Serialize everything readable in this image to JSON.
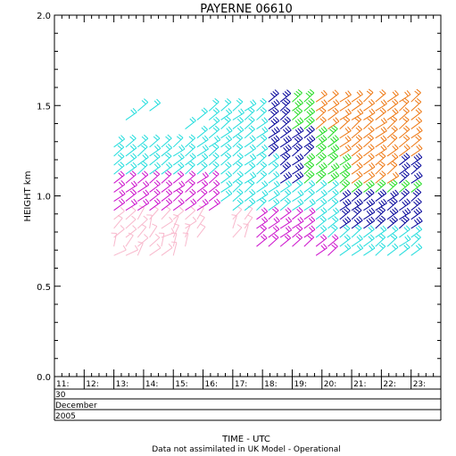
{
  "chart_data": {
    "type": "scatter",
    "subtype": "wind-barb profile",
    "title": "PAYERNE 06610",
    "xlabel": "TIME - UTC",
    "ylabel": "HEIGHT km",
    "note": "Data not assimilated in UK Model - Operational",
    "ylim": [
      0.0,
      2.0
    ],
    "yticks": [
      "0.0",
      "0.5",
      "1.0",
      "1.5",
      "2.0"
    ],
    "xlim": [
      11.0,
      24.0
    ],
    "xtick_labels": [
      "11:",
      "12:",
      "13:",
      "14:",
      "15:",
      "16:",
      "17:",
      "18:",
      "19:",
      "20:",
      "21:",
      "22:",
      "23:"
    ],
    "date_rows": [
      "30",
      "December",
      "2005"
    ],
    "grid": false,
    "speed_colors": {
      "pink": "#f8b8cc",
      "magenta": "#cc11cc",
      "cyan": "#22dddd",
      "navy": "#000099",
      "green": "#22dd22",
      "orange": "#ee7711"
    },
    "barb_columns": [
      {
        "time": 13.0,
        "heights": [
          0.67,
          0.72,
          0.77,
          0.82,
          0.87,
          0.92,
          0.97,
          1.02,
          1.07,
          1.12,
          1.17,
          1.22,
          1.27
        ]
      },
      {
        "time": 13.4,
        "heights": [
          0.67,
          0.72,
          0.77,
          0.82,
          0.87,
          0.92,
          0.97,
          1.02,
          1.07,
          1.12,
          1.17,
          1.22,
          1.27,
          1.42
        ]
      },
      {
        "time": 13.8,
        "heights": [
          0.67,
          0.72,
          0.77,
          0.82,
          0.87,
          0.92,
          0.97,
          1.02,
          1.07,
          1.12,
          1.17,
          1.22,
          1.27,
          1.47
        ]
      },
      {
        "time": 14.2,
        "heights": [
          0.67,
          0.72,
          0.77,
          0.82,
          0.87,
          0.92,
          0.97,
          1.02,
          1.07,
          1.12,
          1.17,
          1.22,
          1.27,
          1.47
        ]
      },
      {
        "time": 14.6,
        "heights": [
          0.67,
          0.72,
          0.77,
          0.82,
          0.87,
          0.92,
          0.97,
          1.02,
          1.07,
          1.12,
          1.17,
          1.22,
          1.27
        ]
      },
      {
        "time": 15.0,
        "heights": [
          0.67,
          0.72,
          0.77,
          0.82,
          0.87,
          0.92,
          0.97,
          1.02,
          1.07,
          1.12,
          1.17,
          1.22,
          1.27
        ]
      },
      {
        "time": 15.4,
        "heights": [
          0.72,
          0.77,
          0.82,
          0.87,
          0.92,
          0.97,
          1.02,
          1.07,
          1.12,
          1.17,
          1.22,
          1.27,
          1.37
        ]
      },
      {
        "time": 15.8,
        "heights": [
          0.77,
          0.82,
          0.87,
          0.92,
          0.97,
          1.02,
          1.07,
          1.12,
          1.17,
          1.22,
          1.27,
          1.32,
          1.42
        ]
      },
      {
        "time": 16.2,
        "heights": [
          0.92,
          0.97,
          1.02,
          1.07,
          1.12,
          1.17,
          1.22,
          1.27,
          1.32,
          1.37,
          1.42,
          1.47
        ]
      },
      {
        "time": 16.6,
        "heights": [
          0.97,
          1.02,
          1.07,
          1.12,
          1.17,
          1.22,
          1.27,
          1.32,
          1.37,
          1.42,
          1.47
        ]
      },
      {
        "time": 17.0,
        "heights": [
          0.77,
          0.82,
          0.87,
          0.92,
          0.97,
          1.02,
          1.07,
          1.12,
          1.17,
          1.22,
          1.27,
          1.32,
          1.37,
          1.42,
          1.47
        ]
      },
      {
        "time": 17.4,
        "heights": [
          0.77,
          0.82,
          0.87,
          0.92,
          0.97,
          1.02,
          1.07,
          1.12,
          1.17,
          1.22,
          1.27,
          1.32,
          1.37,
          1.42,
          1.47
        ]
      },
      {
        "time": 17.8,
        "heights": [
          0.72,
          0.77,
          0.82,
          0.87,
          0.92,
          0.97,
          1.02,
          1.07,
          1.12,
          1.17,
          1.22,
          1.27,
          1.32,
          1.37,
          1.42,
          1.47
        ]
      },
      {
        "time": 18.2,
        "heights": [
          0.72,
          0.77,
          0.82,
          0.87,
          0.92,
          0.97,
          1.02,
          1.07,
          1.12,
          1.17,
          1.22,
          1.27,
          1.32,
          1.37,
          1.42,
          1.47,
          1.52
        ]
      },
      {
        "time": 18.6,
        "heights": [
          0.72,
          0.77,
          0.82,
          0.87,
          0.92,
          0.97,
          1.02,
          1.07,
          1.12,
          1.17,
          1.22,
          1.27,
          1.32,
          1.37,
          1.42,
          1.47,
          1.52
        ]
      },
      {
        "time": 19.0,
        "heights": [
          0.72,
          0.77,
          0.82,
          0.87,
          0.92,
          0.97,
          1.02,
          1.07,
          1.12,
          1.17,
          1.22,
          1.27,
          1.32,
          1.37,
          1.42,
          1.47,
          1.52
        ]
      },
      {
        "time": 19.4,
        "heights": [
          0.72,
          0.77,
          0.82,
          0.87,
          0.92,
          0.97,
          1.02,
          1.07,
          1.12,
          1.17,
          1.22,
          1.27,
          1.32,
          1.37,
          1.42,
          1.47,
          1.52
        ]
      },
      {
        "time": 19.8,
        "heights": [
          0.67,
          0.72,
          0.77,
          0.82,
          0.87,
          0.92,
          0.97,
          1.02,
          1.07,
          1.12,
          1.17,
          1.22,
          1.27,
          1.32,
          1.37,
          1.42,
          1.47,
          1.52
        ]
      },
      {
        "time": 20.2,
        "heights": [
          0.67,
          0.72,
          0.77,
          0.82,
          0.87,
          0.92,
          0.97,
          1.02,
          1.07,
          1.12,
          1.17,
          1.22,
          1.27,
          1.32,
          1.37,
          1.42,
          1.47,
          1.52
        ]
      },
      {
        "time": 20.6,
        "heights": [
          0.67,
          0.72,
          0.77,
          0.82,
          0.87,
          0.92,
          0.97,
          1.02,
          1.07,
          1.12,
          1.17,
          1.22,
          1.27,
          1.32,
          1.37,
          1.42,
          1.47,
          1.52
        ]
      },
      {
        "time": 21.0,
        "heights": [
          0.67,
          0.72,
          0.77,
          0.82,
          0.87,
          0.92,
          0.97,
          1.02,
          1.07,
          1.12,
          1.17,
          1.22,
          1.27,
          1.32,
          1.37,
          1.42,
          1.47,
          1.52
        ]
      },
      {
        "time": 21.4,
        "heights": [
          0.67,
          0.72,
          0.77,
          0.82,
          0.87,
          0.92,
          0.97,
          1.02,
          1.07,
          1.12,
          1.17,
          1.22,
          1.27,
          1.32,
          1.37,
          1.42,
          1.47,
          1.52
        ]
      },
      {
        "time": 21.8,
        "heights": [
          0.67,
          0.72,
          0.77,
          0.82,
          0.87,
          0.92,
          0.97,
          1.02,
          1.07,
          1.12,
          1.17,
          1.22,
          1.27,
          1.32,
          1.37,
          1.42,
          1.47,
          1.52
        ]
      },
      {
        "time": 22.2,
        "heights": [
          0.67,
          0.72,
          0.77,
          0.82,
          0.87,
          0.92,
          0.97,
          1.02,
          1.07,
          1.12,
          1.17,
          1.22,
          1.27,
          1.32,
          1.37,
          1.42,
          1.47,
          1.52
        ]
      },
      {
        "time": 22.6,
        "heights": [
          0.67,
          0.72,
          0.77,
          0.82,
          0.87,
          0.92,
          0.97,
          1.02,
          1.07,
          1.12,
          1.17,
          1.22,
          1.27,
          1.32,
          1.37,
          1.42,
          1.47,
          1.52
        ]
      },
      {
        "time": 23.0,
        "heights": [
          0.67,
          0.72,
          0.77,
          0.82,
          0.87,
          0.92,
          0.97,
          1.02,
          1.07,
          1.12,
          1.17,
          1.22,
          1.27,
          1.32,
          1.37,
          1.42,
          1.47,
          1.52
        ]
      }
    ]
  }
}
